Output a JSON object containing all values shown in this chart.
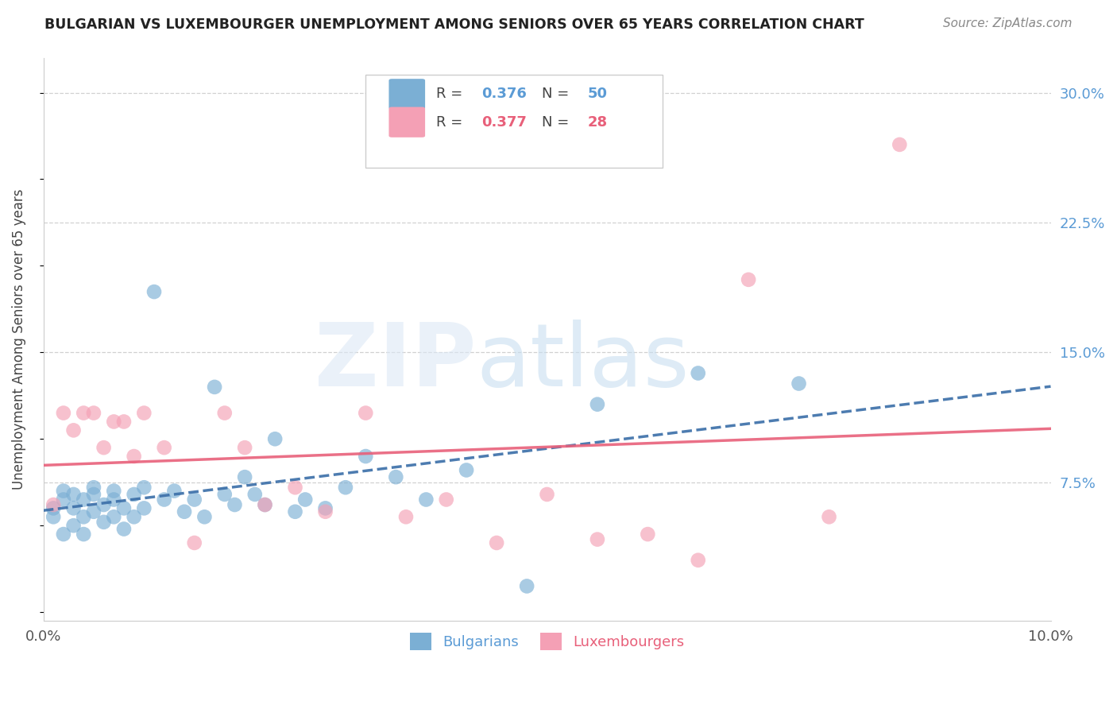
{
  "title": "BULGARIAN VS LUXEMBOURGER UNEMPLOYMENT AMONG SENIORS OVER 65 YEARS CORRELATION CHART",
  "source": "Source: ZipAtlas.com",
  "ylabel": "Unemployment Among Seniors over 65 years",
  "xlim": [
    0.0,
    0.1
  ],
  "ylim": [
    -0.005,
    0.32
  ],
  "yticks_right": [
    0.075,
    0.15,
    0.225,
    0.3
  ],
  "ytick_labels_right": [
    "7.5%",
    "15.0%",
    "22.5%",
    "30.0%"
  ],
  "bulgarian_color": "#7bafd4",
  "luxembourger_color": "#f4a0b5",
  "bulgarian_line_color": "#3a6ea8",
  "luxembourger_line_color": "#e8607a",
  "bulgarians_x": [
    0.001,
    0.001,
    0.002,
    0.002,
    0.002,
    0.003,
    0.003,
    0.003,
    0.004,
    0.004,
    0.004,
    0.005,
    0.005,
    0.005,
    0.006,
    0.006,
    0.007,
    0.007,
    0.007,
    0.008,
    0.008,
    0.009,
    0.009,
    0.01,
    0.01,
    0.011,
    0.012,
    0.013,
    0.014,
    0.015,
    0.016,
    0.017,
    0.018,
    0.019,
    0.02,
    0.021,
    0.022,
    0.023,
    0.025,
    0.026,
    0.028,
    0.03,
    0.032,
    0.035,
    0.038,
    0.042,
    0.048,
    0.055,
    0.065,
    0.075
  ],
  "bulgarians_y": [
    0.055,
    0.06,
    0.045,
    0.065,
    0.07,
    0.05,
    0.06,
    0.068,
    0.045,
    0.055,
    0.065,
    0.058,
    0.068,
    0.072,
    0.052,
    0.062,
    0.055,
    0.065,
    0.07,
    0.06,
    0.048,
    0.055,
    0.068,
    0.06,
    0.072,
    0.185,
    0.065,
    0.07,
    0.058,
    0.065,
    0.055,
    0.13,
    0.068,
    0.062,
    0.078,
    0.068,
    0.062,
    0.1,
    0.058,
    0.065,
    0.06,
    0.072,
    0.09,
    0.078,
    0.065,
    0.082,
    0.015,
    0.12,
    0.138,
    0.132
  ],
  "luxembourgers_x": [
    0.001,
    0.002,
    0.003,
    0.004,
    0.005,
    0.006,
    0.007,
    0.008,
    0.009,
    0.01,
    0.012,
    0.015,
    0.018,
    0.02,
    0.022,
    0.025,
    0.028,
    0.032,
    0.036,
    0.04,
    0.045,
    0.05,
    0.055,
    0.06,
    0.065,
    0.07,
    0.078,
    0.085
  ],
  "luxembourgers_y": [
    0.062,
    0.115,
    0.105,
    0.115,
    0.115,
    0.095,
    0.11,
    0.11,
    0.09,
    0.115,
    0.095,
    0.04,
    0.115,
    0.095,
    0.062,
    0.072,
    0.058,
    0.115,
    0.055,
    0.065,
    0.04,
    0.068,
    0.042,
    0.045,
    0.03,
    0.192,
    0.055,
    0.27
  ]
}
